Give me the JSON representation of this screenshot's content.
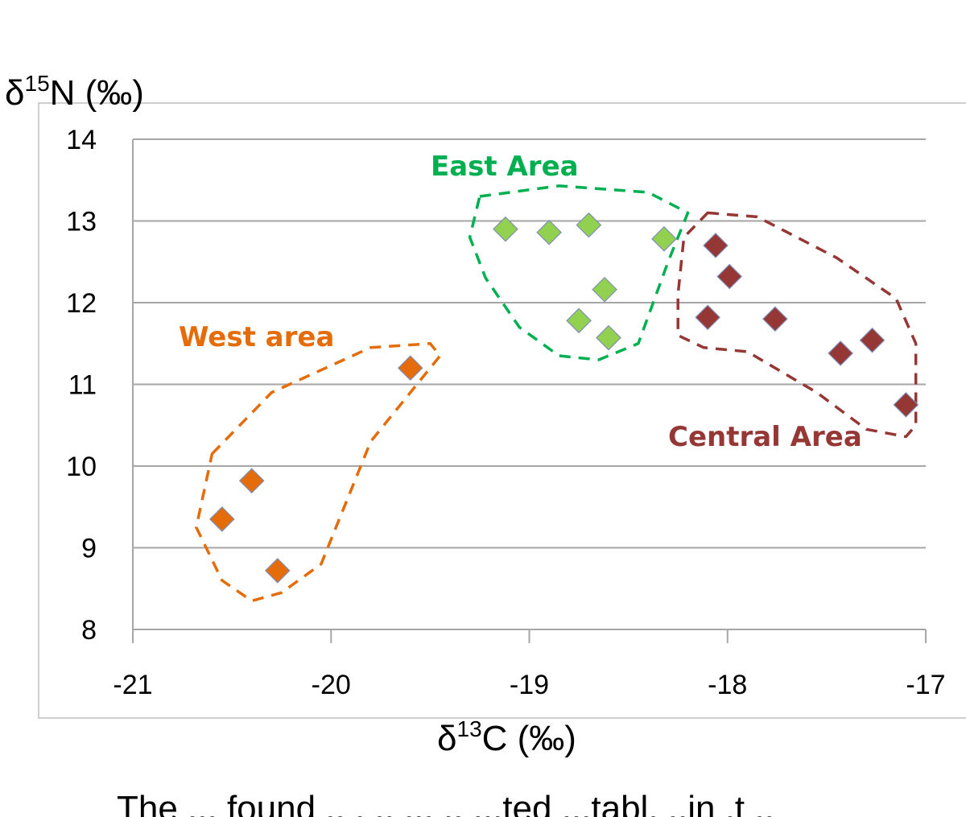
{
  "chart_data": {
    "type": "scatter",
    "title": "",
    "xlabel": {
      "prefix": "δ",
      "sup": "13",
      "main": "C (‰)"
    },
    "ylabel": {
      "prefix": "δ",
      "sup": "15",
      "main": "N (‰)"
    },
    "xlim": [
      -21,
      -17
    ],
    "ylim": [
      8,
      14
    ],
    "xticks": [
      "-21",
      "-20",
      "-19",
      "-18",
      "-17"
    ],
    "yticks": [
      "8",
      "9",
      "10",
      "11",
      "12",
      "13",
      "14"
    ],
    "grid": "horizontal",
    "marker": "diamond",
    "series": [
      {
        "name": "West area",
        "color": "#E46C0A",
        "points": [
          [
            -20.55,
            9.35
          ],
          [
            -20.4,
            9.82
          ],
          [
            -20.27,
            8.72
          ],
          [
            -19.6,
            11.2
          ]
        ]
      },
      {
        "name": "East Area",
        "color": "#92D050",
        "points": [
          [
            -19.12,
            12.9
          ],
          [
            -18.9,
            12.86
          ],
          [
            -18.7,
            12.95
          ],
          [
            -18.32,
            12.78
          ],
          [
            -18.62,
            12.16
          ],
          [
            -18.75,
            11.78
          ],
          [
            -18.6,
            11.57
          ]
        ]
      },
      {
        "name": "Central Area",
        "color": "#953735",
        "points": [
          [
            -18.06,
            12.7
          ],
          [
            -17.99,
            12.32
          ],
          [
            -18.1,
            11.82
          ],
          [
            -17.76,
            11.8
          ],
          [
            -17.43,
            11.38
          ],
          [
            -17.27,
            11.54
          ],
          [
            -17.1,
            10.75
          ]
        ]
      }
    ],
    "annotations": [
      {
        "text": "West area",
        "color": "#E46C0A"
      },
      {
        "text": "East Area",
        "color": "#00B050"
      },
      {
        "text": "Central Area",
        "color": "#953735"
      }
    ]
  },
  "caption": "The ... found .. . .. ... .. ...ted ...tabl. ..in .t .."
}
